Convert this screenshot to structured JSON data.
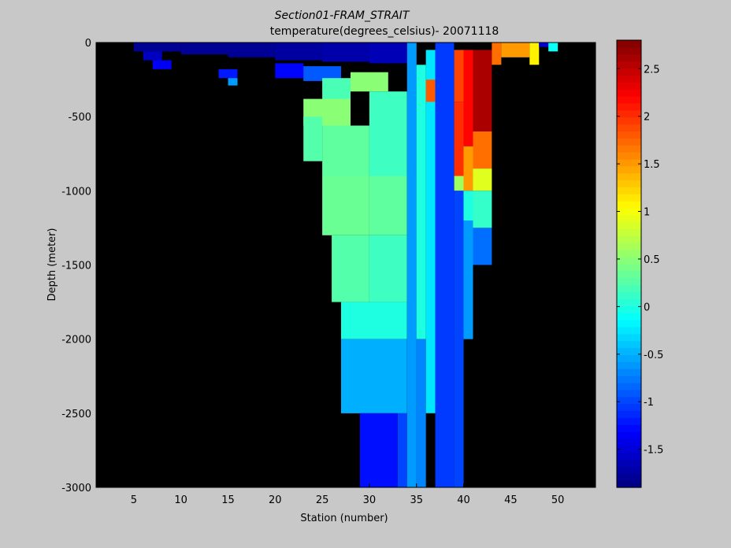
{
  "chart_data": {
    "type": "heatmap",
    "title": "Section01-FRAM_STRAIT",
    "subtitle": "temperature(degrees_celsius)- 20071118",
    "xlabel": "Station (number)",
    "ylabel": "Depth (meter)",
    "xlim": [
      1,
      54
    ],
    "ylim": [
      -3000,
      0
    ],
    "x_ticks": [
      "5",
      "10",
      "15",
      "20",
      "25",
      "30",
      "35",
      "40",
      "45",
      "50"
    ],
    "y_ticks": [
      "0",
      "-500",
      "-1000",
      "-1500",
      "-2000",
      "-2500",
      "-3000"
    ],
    "colorbar": {
      "range": [
        -1.9,
        2.8
      ],
      "ticks": [
        "2.5",
        "2",
        "1.5",
        "1",
        "0.5",
        "0",
        "-0.5",
        "-1",
        "-1.5"
      ]
    },
    "background_color": "#000000",
    "stations": [
      5,
      6,
      7,
      8,
      9,
      10,
      11,
      12,
      13,
      14,
      15,
      16,
      17,
      18,
      19,
      20,
      21,
      22,
      23,
      24,
      25,
      26,
      27,
      28,
      29,
      30,
      31,
      32,
      33,
      34,
      35,
      36,
      37,
      38,
      39,
      40,
      41,
      42,
      43,
      44,
      45,
      46,
      47,
      48,
      49,
      50
    ],
    "cells": [
      {
        "x": [
          5,
          10
        ],
        "y": [
          0,
          -60
        ],
        "value": -1.8
      },
      {
        "x": [
          10,
          15
        ],
        "y": [
          0,
          -80
        ],
        "value": -1.8
      },
      {
        "x": [
          15,
          20
        ],
        "y": [
          0,
          -100
        ],
        "value": -1.8
      },
      {
        "x": [
          20,
          25
        ],
        "y": [
          0,
          -120
        ],
        "value": -1.75
      },
      {
        "x": [
          25,
          30
        ],
        "y": [
          0,
          -130
        ],
        "value": -1.7
      },
      {
        "x": [
          30,
          34
        ],
        "y": [
          0,
          -140
        ],
        "value": -1.65
      },
      {
        "x": [
          6,
          8
        ],
        "y": [
          -60,
          -120
        ],
        "value": -1.6
      },
      {
        "x": [
          7,
          9
        ],
        "y": [
          -120,
          -180
        ],
        "value": -1.35
      },
      {
        "x": [
          14,
          16
        ],
        "y": [
          -180,
          -240
        ],
        "value": -1.2
      },
      {
        "x": [
          15,
          16
        ],
        "y": [
          -240,
          -290
        ],
        "value": -0.6
      },
      {
        "x": [
          20,
          23
        ],
        "y": [
          -140,
          -240
        ],
        "value": -1.3
      },
      {
        "x": [
          23,
          27
        ],
        "y": [
          -160,
          -260
        ],
        "value": -0.9
      },
      {
        "x": [
          25,
          28
        ],
        "y": [
          -240,
          -400
        ],
        "value": 0.2
      },
      {
        "x": [
          28,
          32
        ],
        "y": [
          -200,
          -330
        ],
        "value": 0.5
      },
      {
        "x": [
          23,
          28
        ],
        "y": [
          -380,
          -560
        ],
        "value": 0.5
      },
      {
        "x": [
          23,
          25
        ],
        "y": [
          -500,
          -800
        ],
        "value": 0.25
      },
      {
        "x": [
          25,
          30
        ],
        "y": [
          -560,
          -900
        ],
        "value": 0.3
      },
      {
        "x": [
          30,
          34
        ],
        "y": [
          -330,
          -900
        ],
        "value": 0.15
      },
      {
        "x": [
          25,
          30
        ],
        "y": [
          -900,
          -1300
        ],
        "value": 0.35
      },
      {
        "x": [
          30,
          34
        ],
        "y": [
          -900,
          -1300
        ],
        "value": 0.3
      },
      {
        "x": [
          26,
          30
        ],
        "y": [
          -1300,
          -1750
        ],
        "value": 0.25
      },
      {
        "x": [
          30,
          34
        ],
        "y": [
          -1300,
          -1750
        ],
        "value": 0.15
      },
      {
        "x": [
          27,
          34
        ],
        "y": [
          -1750,
          -2000
        ],
        "value": 0.0
      },
      {
        "x": [
          27,
          34
        ],
        "y": [
          -2000,
          -2500
        ],
        "value": -0.5
      },
      {
        "x": [
          29,
          33
        ],
        "y": [
          -2500,
          -3000
        ],
        "value": -1.25
      },
      {
        "x": [
          33,
          34
        ],
        "y": [
          -2500,
          -3000
        ],
        "value": -1.0
      },
      {
        "x": [
          34,
          35
        ],
        "y": [
          0,
          -3000
        ],
        "value": -0.6
      },
      {
        "x": [
          35,
          36
        ],
        "y": [
          -150,
          -2000
        ],
        "value": 0.0
      },
      {
        "x": [
          35,
          36
        ],
        "y": [
          -2000,
          -3000
        ],
        "value": -0.7
      },
      {
        "x": [
          36,
          37
        ],
        "y": [
          -50,
          -2500
        ],
        "value": -0.25
      },
      {
        "x": [
          36,
          37
        ],
        "y": [
          -250,
          -400
        ],
        "value": 1.8
      },
      {
        "x": [
          37,
          39
        ],
        "y": [
          0,
          -3000
        ],
        "value": -1.05
      },
      {
        "x": [
          39,
          40
        ],
        "y": [
          -50,
          -400
        ],
        "value": 1.9
      },
      {
        "x": [
          39,
          40
        ],
        "y": [
          -400,
          -900
        ],
        "value": 2.0
      },
      {
        "x": [
          39,
          40
        ],
        "y": [
          -900,
          -1000
        ],
        "value": 0.6
      },
      {
        "x": [
          39,
          40
        ],
        "y": [
          -1000,
          -3000
        ],
        "value": -1.0
      },
      {
        "x": [
          40,
          41
        ],
        "y": [
          -50,
          -700
        ],
        "value": 2.2
      },
      {
        "x": [
          40,
          41
        ],
        "y": [
          -700,
          -1000
        ],
        "value": 1.5
      },
      {
        "x": [
          40,
          41
        ],
        "y": [
          -1000,
          -1200
        ],
        "value": 0.0
      },
      {
        "x": [
          40,
          41
        ],
        "y": [
          -1200,
          -2000
        ],
        "value": -0.6
      },
      {
        "x": [
          41,
          43
        ],
        "y": [
          -50,
          -600
        ],
        "value": 2.6
      },
      {
        "x": [
          41,
          43
        ],
        "y": [
          -600,
          -850
        ],
        "value": 1.7
      },
      {
        "x": [
          41,
          43
        ],
        "y": [
          -850,
          -1000
        ],
        "value": 0.9
      },
      {
        "x": [
          41,
          43
        ],
        "y": [
          -1000,
          -1250
        ],
        "value": 0.1
      },
      {
        "x": [
          41,
          43
        ],
        "y": [
          -1250,
          -1500
        ],
        "value": -0.8
      },
      {
        "x": [
          43,
          44
        ],
        "y": [
          0,
          -150
        ],
        "value": 1.7
      },
      {
        "x": [
          44,
          47
        ],
        "y": [
          0,
          -100
        ],
        "value": 1.5
      },
      {
        "x": [
          47,
          48
        ],
        "y": [
          0,
          -150
        ],
        "value": 1.1
      },
      {
        "x": [
          48,
          49
        ],
        "y": [
          0,
          -30
        ],
        "value": -1.5
      },
      {
        "x": [
          49,
          50
        ],
        "y": [
          0,
          -60
        ],
        "value": -0.1
      }
    ]
  }
}
